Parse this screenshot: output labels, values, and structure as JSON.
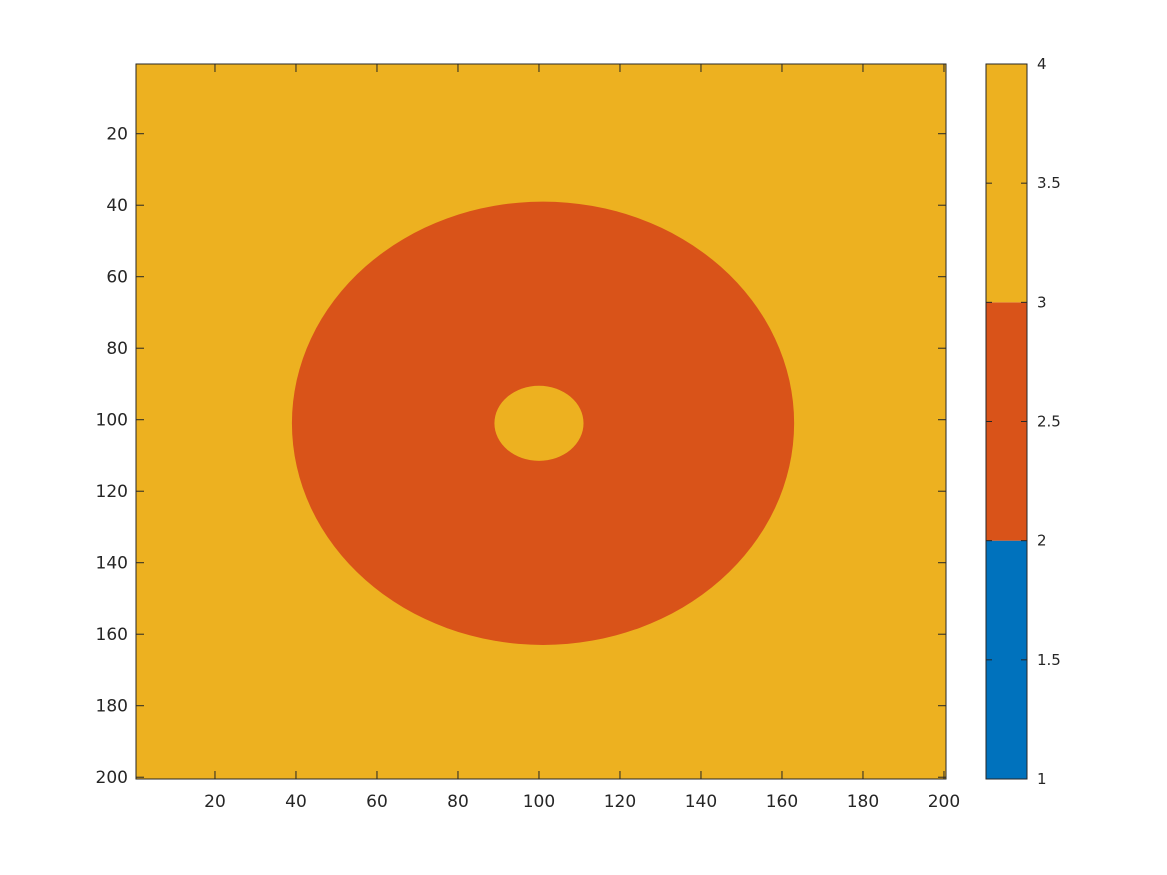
{
  "chart_data": {
    "type": "heatmap",
    "title": "",
    "xlabel": "",
    "ylabel": "",
    "x_range": [
      1,
      200
    ],
    "y_range": [
      1,
      200
    ],
    "y_direction": "top-to-bottom",
    "x_ticks": [
      "20",
      "40",
      "60",
      "80",
      "100",
      "120",
      "140",
      "160",
      "180",
      "200"
    ],
    "y_ticks": [
      "20",
      "40",
      "60",
      "80",
      "100",
      "120",
      "140",
      "160",
      "180",
      "200"
    ],
    "background_value": 4,
    "regions": [
      {
        "shape": "ellipse",
        "value": 3,
        "center_x": 101,
        "center_y": 101,
        "radius_x": 62,
        "radius_y": 62
      },
      {
        "shape": "ellipse",
        "value": 4,
        "center_x": 100,
        "center_y": 101,
        "radius_x": 11,
        "radius_y": 10.5
      }
    ],
    "colorbar": {
      "range": [
        1,
        4
      ],
      "ticks": [
        "1",
        "1.5",
        "2",
        "2.5",
        "3",
        "3.5",
        "4"
      ],
      "bands": [
        {
          "from": 1,
          "to": 2,
          "color": "#0072BD"
        },
        {
          "from": 2,
          "to": 3,
          "color": "#D95319"
        },
        {
          "from": 3,
          "to": 4,
          "color": "#EDB120"
        }
      ]
    },
    "colors": {
      "value_3": "#D95319",
      "value_4": "#EDB120",
      "value_2": "#0072BD"
    },
    "grid": false
  }
}
